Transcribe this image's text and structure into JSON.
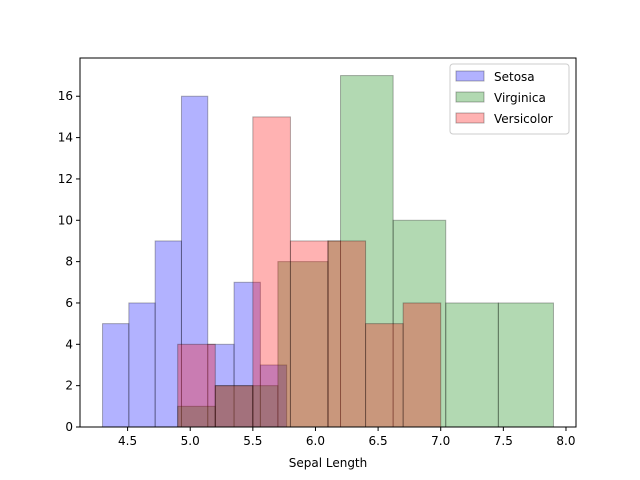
{
  "chart_data": {
    "type": "bar",
    "subtype": "histogram",
    "title": "",
    "xlabel": "Sepal Length",
    "ylabel": "",
    "xlim": [
      4.12,
      8.08
    ],
    "ylim": [
      0,
      17.85
    ],
    "xticks": [
      4.5,
      5.0,
      5.5,
      6.0,
      6.5,
      7.0,
      7.5,
      8.0
    ],
    "xtick_labels": [
      "4.5",
      "5.0",
      "5.5",
      "6.0",
      "6.5",
      "7.0",
      "7.5",
      "8.0"
    ],
    "yticks": [
      0,
      2,
      4,
      6,
      8,
      10,
      12,
      14,
      16
    ],
    "ytick_labels": [
      "0",
      "2",
      "4",
      "6",
      "8",
      "10",
      "12",
      "14",
      "16"
    ],
    "grid": false,
    "legend_position": "top-right",
    "series": [
      {
        "name": "Setosa",
        "color": "#0000ff",
        "bins": [
          {
            "x0": 4.3,
            "x1": 4.51,
            "count": 5
          },
          {
            "x0": 4.51,
            "x1": 4.72,
            "count": 6
          },
          {
            "x0": 4.72,
            "x1": 4.93,
            "count": 9
          },
          {
            "x0": 4.93,
            "x1": 5.14,
            "count": 16
          },
          {
            "x0": 5.14,
            "x1": 5.35,
            "count": 4
          },
          {
            "x0": 5.35,
            "x1": 5.56,
            "count": 7
          },
          {
            "x0": 5.56,
            "x1": 5.77,
            "count": 3
          }
        ]
      },
      {
        "name": "Virginica",
        "color": "#008000",
        "bins": [
          {
            "x0": 4.9,
            "x1": 5.2,
            "count": 1
          },
          {
            "x0": 5.2,
            "x1": 5.5,
            "count": 2
          },
          {
            "x0": 5.5,
            "x1": 5.7,
            "count": 2
          },
          {
            "x0": 5.7,
            "x1": 6.1,
            "count": 8
          },
          {
            "x0": 6.1,
            "x1": 6.2,
            "count": 9
          },
          {
            "x0": 6.2,
            "x1": 6.62,
            "count": 17
          },
          {
            "x0": 6.62,
            "x1": 7.04,
            "count": 10
          },
          {
            "x0": 7.04,
            "x1": 7.46,
            "count": 6
          },
          {
            "x0": 7.46,
            "x1": 7.9,
            "count": 6
          }
        ]
      },
      {
        "name": "Versicolor",
        "color": "#ff0000",
        "bins": [
          {
            "x0": 4.9,
            "x1": 5.2,
            "count": 4
          },
          {
            "x0": 5.2,
            "x1": 5.5,
            "count": 2
          },
          {
            "x0": 5.5,
            "x1": 5.8,
            "count": 15
          },
          {
            "x0": 5.8,
            "x1": 6.1,
            "count": 9
          },
          {
            "x0": 6.1,
            "x1": 6.4,
            "count": 9
          },
          {
            "x0": 6.4,
            "x1": 6.7,
            "count": 5
          },
          {
            "x0": 6.7,
            "x1": 7.0,
            "count": 6
          }
        ]
      }
    ]
  }
}
